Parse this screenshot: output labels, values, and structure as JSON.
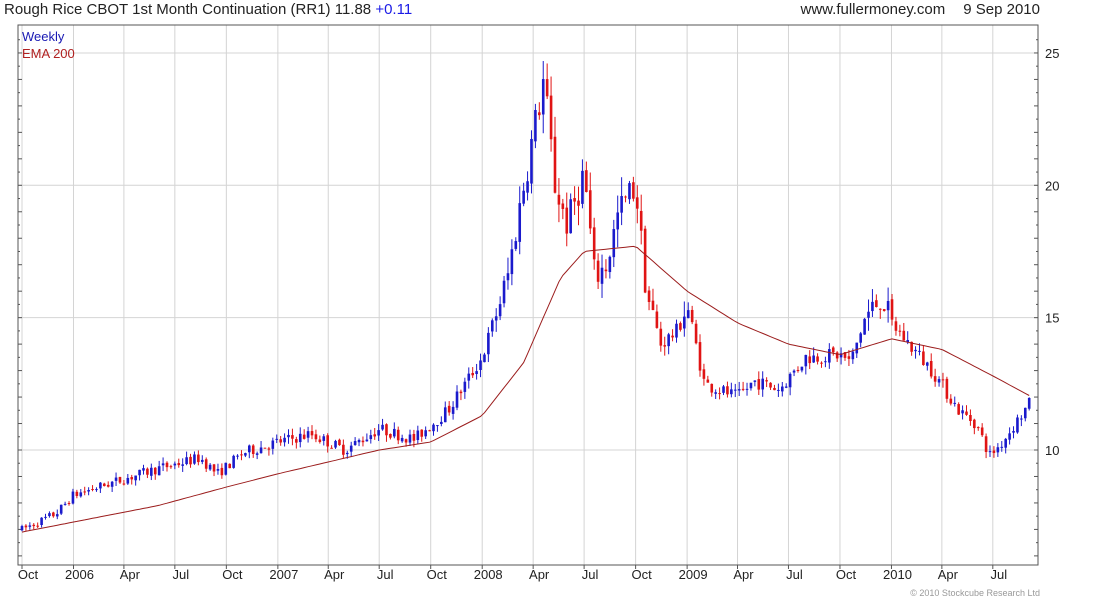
{
  "header": {
    "title": "Rough Rice CBOT 1st Month Continuation (RR1)",
    "last": "11.88",
    "change": "+0.11",
    "site": "www.fullermoney.com",
    "date": "9 Sep 2010"
  },
  "legend": {
    "series1": "Weekly",
    "series2": "EMA 200"
  },
  "copyright": "© 2010 Stockcube Research Ltd",
  "colors": {
    "up": "#1a1acc",
    "down": "#e01414",
    "ema": "#9b1c1c",
    "grid": "#d4d4d4",
    "legend_weekly": "#1a1ab4",
    "legend_ema": "#b02020"
  },
  "chart_data": {
    "type": "candlestick",
    "frequency": "weekly",
    "x_range": [
      "2005-10-01",
      "2010-09-09"
    ],
    "ylim": [
      6,
      25.5
    ],
    "y_ticks": [
      10,
      15,
      20,
      25
    ],
    "x_ticks": [
      "Oct",
      "2006",
      "Apr",
      "Jul",
      "Oct",
      "2007",
      "Apr",
      "Jul",
      "Oct",
      "2008",
      "Apr",
      "Jul",
      "Oct",
      "2009",
      "Apr",
      "Jul",
      "Oct",
      "2010",
      "Apr",
      "Jul"
    ],
    "price_anchors": [
      [
        "2005-10-01",
        7.0
      ],
      [
        "2005-12-01",
        7.6
      ],
      [
        "2006-01-01",
        8.3
      ],
      [
        "2006-03-01",
        8.7
      ],
      [
        "2006-06-01",
        9.3
      ],
      [
        "2006-08-15",
        9.7
      ],
      [
        "2006-09-15",
        9.1
      ],
      [
        "2006-11-01",
        9.9
      ],
      [
        "2007-01-01",
        10.3
      ],
      [
        "2007-03-01",
        10.6
      ],
      [
        "2007-05-01",
        10.0
      ],
      [
        "2007-07-01",
        10.8
      ],
      [
        "2007-09-01",
        10.4
      ],
      [
        "2007-11-01",
        11.5
      ],
      [
        "2008-01-01",
        13.5
      ],
      [
        "2008-02-15",
        16.5
      ],
      [
        "2008-03-15",
        20.0
      ],
      [
        "2008-04-20",
        24.0
      ],
      [
        "2008-05-10",
        20.0
      ],
      [
        "2008-06-01",
        18.5
      ],
      [
        "2008-07-01",
        20.5
      ],
      [
        "2008-07-20",
        16.5
      ],
      [
        "2008-08-10",
        17.0
      ],
      [
        "2008-09-01",
        19.0
      ],
      [
        "2008-10-01",
        20.0
      ],
      [
        "2008-10-20",
        16.0
      ],
      [
        "2008-11-15",
        14.0
      ],
      [
        "2008-12-15",
        14.5
      ],
      [
        "2009-01-01",
        15.5
      ],
      [
        "2009-02-01",
        12.5
      ],
      [
        "2009-04-01",
        12.0
      ],
      [
        "2009-05-01",
        12.6
      ],
      [
        "2009-06-15",
        12.3
      ],
      [
        "2009-08-01",
        13.5
      ],
      [
        "2009-10-01",
        13.6
      ],
      [
        "2009-10-20",
        13.3
      ],
      [
        "2009-11-15",
        15.0
      ],
      [
        "2009-12-15",
        15.8
      ],
      [
        "2010-01-01",
        14.8
      ],
      [
        "2010-02-01",
        14.0
      ],
      [
        "2010-03-15",
        13.0
      ],
      [
        "2010-05-01",
        11.5
      ],
      [
        "2010-06-01",
        11.0
      ],
      [
        "2010-06-25",
        9.8
      ],
      [
        "2010-07-15",
        10.2
      ],
      [
        "2010-08-10",
        11.0
      ],
      [
        "2010-09-09",
        11.88
      ]
    ],
    "ema_anchors": [
      [
        "2005-10-01",
        6.9
      ],
      [
        "2006-06-01",
        7.9
      ],
      [
        "2006-10-01",
        8.6
      ],
      [
        "2007-01-01",
        9.1
      ],
      [
        "2007-07-01",
        10.0
      ],
      [
        "2007-10-01",
        10.3
      ],
      [
        "2008-01-01",
        11.3
      ],
      [
        "2008-03-15",
        13.3
      ],
      [
        "2008-05-20",
        16.5
      ],
      [
        "2008-07-01",
        17.5
      ],
      [
        "2008-10-01",
        17.7
      ],
      [
        "2009-01-01",
        16.0
      ],
      [
        "2009-04-01",
        14.8
      ],
      [
        "2009-07-01",
        14.0
      ],
      [
        "2009-10-01",
        13.6
      ],
      [
        "2010-01-01",
        14.2
      ],
      [
        "2010-04-01",
        13.8
      ],
      [
        "2010-07-01",
        12.8
      ],
      [
        "2010-09-09",
        12.0
      ]
    ]
  }
}
